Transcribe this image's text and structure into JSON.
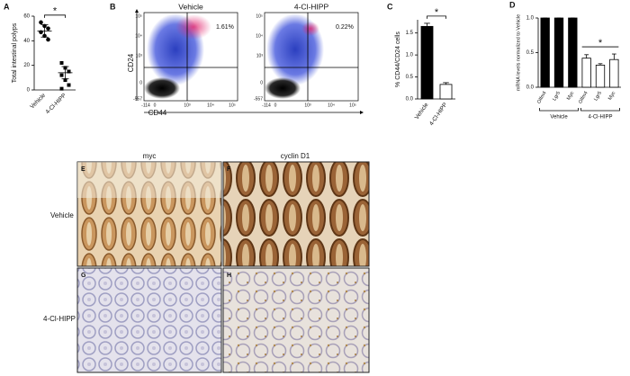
{
  "chart_data": [
    {
      "type": "dot",
      "label": "A",
      "ylabel": "Total intestinal polyps",
      "categories": [
        "Vehicle",
        "4-Cl-HIPP"
      ],
      "points": [
        [
          55,
          52,
          50,
          47,
          44,
          41
        ],
        [
          22,
          18,
          15,
          12,
          8,
          4,
          1
        ]
      ],
      "means": [
        48,
        14
      ],
      "errors": [
        5,
        5
      ],
      "ylim": [
        0,
        60
      ],
      "yticks": [
        0,
        20,
        40,
        60
      ],
      "annotation": "*"
    },
    {
      "type": "bar",
      "label": "C",
      "ylabel": "% CD44/CD24 cells",
      "categories": [
        "Vehicle",
        "4-Cl-HIPP"
      ],
      "values": [
        1.65,
        0.33
      ],
      "errors": [
        0.07,
        0.04
      ],
      "colors": [
        "#000000",
        "#ffffff"
      ],
      "ylim": [
        0,
        1.8
      ],
      "yticks": [
        {
          "value": 0,
          "label": "0.0"
        },
        0.5,
        {
          "value": 1,
          "label": "1.0"
        },
        1.5
      ],
      "annotation": "*"
    },
    {
      "type": "bar",
      "label": "D",
      "ylabel": "mRNA levels normalized to Vehicle",
      "categories": [
        "Olfm4",
        "Lgr5",
        "Myc",
        "Olfm4",
        "Lgr5",
        "Myc"
      ],
      "values": [
        1,
        1,
        1,
        0.42,
        0.32,
        0.4
      ],
      "errors": [
        0,
        0,
        0,
        0.05,
        0.02,
        0.08
      ],
      "colors": [
        "#000000",
        "#000000",
        "#000000",
        "#ffffff",
        "#ffffff",
        "#ffffff"
      ],
      "groups": [
        "Vehicle",
        "4-Cl-HIPP"
      ],
      "ylim": [
        0,
        1
      ],
      "yticks": [
        {
          "value": 0,
          "label": "0.0"
        },
        0.5,
        {
          "value": 1,
          "label": "1.0"
        }
      ],
      "annotation": "*"
    }
  ],
  "flow": {
    "label": "B",
    "x_axis": "CD44",
    "y_axis": "CD24",
    "plots": [
      {
        "title": "Vehicle",
        "percent": "1.61%"
      },
      {
        "title": "4-Cl-HIPP",
        "percent": "0.22%"
      }
    ],
    "x_tick_labels": [
      "-114",
      "0",
      "10³",
      "10⁴",
      "10⁵"
    ],
    "y_tick_labels": [
      "10⁵",
      "10⁴",
      "10³",
      "0",
      "-557"
    ]
  },
  "histology": {
    "columns": [
      "myc",
      "cyclin D1"
    ],
    "rows": [
      "Vehicle",
      "4-Cl-HIPP"
    ],
    "panels": [
      "E",
      "F",
      "G",
      "H"
    ]
  }
}
